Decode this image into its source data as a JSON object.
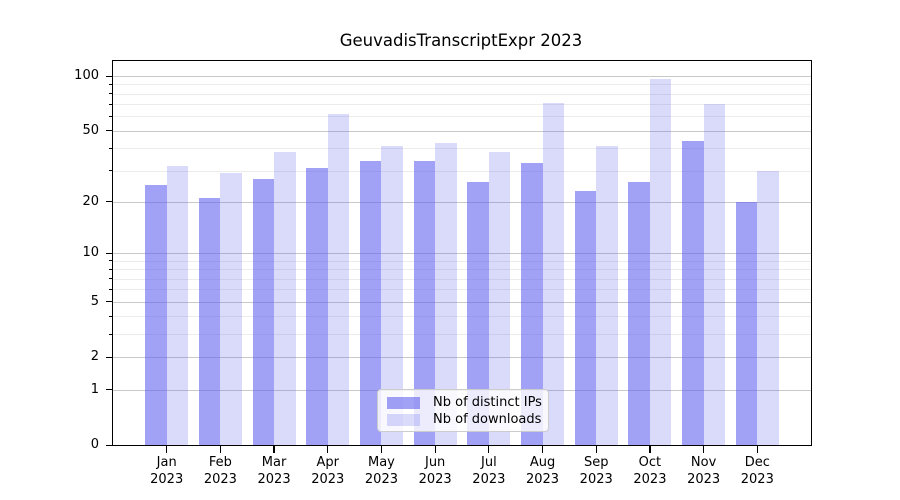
{
  "chart_data": {
    "type": "bar",
    "title": "GeuvadisTranscriptExpr 2023",
    "categories": [
      "Jan 2023",
      "Feb 2023",
      "Mar 2023",
      "Apr 2023",
      "May 2023",
      "Jun 2023",
      "Jul 2023",
      "Aug 2023",
      "Sep 2023",
      "Oct 2023",
      "Nov 2023",
      "Dec 2023"
    ],
    "series": [
      {
        "name": "Nb of distinct IPs",
        "color": "rgba(98,98,238,0.60)",
        "values": [
          25,
          21,
          27,
          31,
          34,
          34,
          26,
          33,
          23,
          26,
          44,
          20
        ]
      },
      {
        "name": "Nb of downloads",
        "color": "rgba(98,98,238,0.235)",
        "values": [
          32,
          29,
          38,
          62,
          41,
          43,
          38,
          71,
          41,
          97,
          70,
          30
        ]
      }
    ],
    "yscale": "log1p",
    "ylim": [
      0,
      121
    ],
    "y_ticks_labeled": [
      0,
      1,
      2,
      5,
      10,
      20,
      50,
      100
    ],
    "y_ticks_minor": [
      3,
      4,
      6,
      7,
      8,
      9,
      30,
      40,
      60,
      70,
      80,
      90
    ],
    "grid": true,
    "legend_position": "lower center"
  },
  "colors": {
    "grid_major": "#c9c9c9",
    "grid_minor": "#ececec",
    "spine": "#000000",
    "text": "#000000",
    "legend_border": "#cccccc",
    "legend_bg": "rgba(255,255,255,0.8)"
  }
}
